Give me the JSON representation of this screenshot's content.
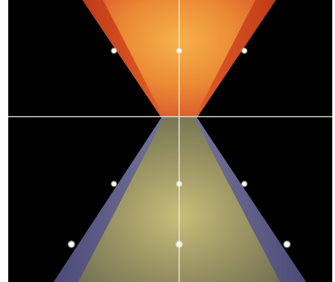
{
  "diagram": {
    "background_color": "#000000",
    "frame_color": "#ffffff",
    "axis_line_color": "#e8e0d0",
    "point_color": "#f4f0e8",
    "future_cone": {
      "outer_color": "#e24a1a",
      "inner_color": "#f0a640"
    },
    "past_cone": {
      "outer_color": "#5c5a86",
      "inner_color": "#b6ac6a"
    }
  }
}
